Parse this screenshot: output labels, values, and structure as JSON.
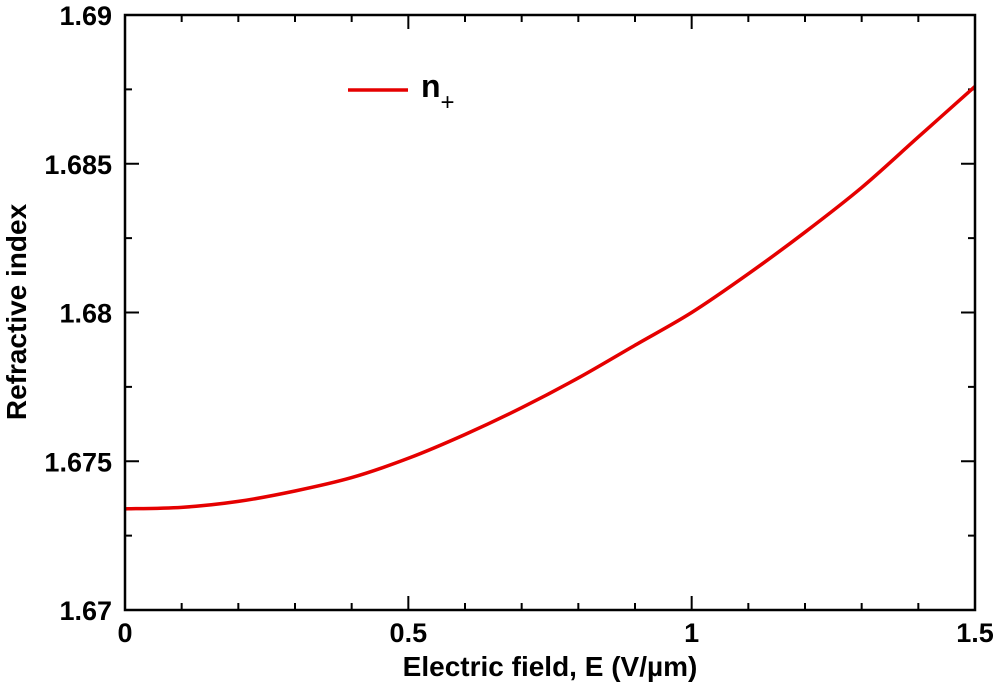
{
  "chart_data": {
    "type": "line",
    "xlabel": "Electric field, E (V/µm)",
    "ylabel": "Refractive index",
    "xlim": [
      0,
      1.5
    ],
    "ylim": [
      1.67,
      1.69
    ],
    "x_ticks": [
      0,
      0.5,
      1,
      1.5
    ],
    "x_tick_labels": [
      "0",
      "0.5",
      "1",
      "1.5"
    ],
    "y_ticks": [
      1.67,
      1.675,
      1.68,
      1.685,
      1.69
    ],
    "y_tick_labels": [
      "1.67",
      "1.675",
      "1.68",
      "1.685",
      "1.69"
    ],
    "grid": false,
    "legend_position": "top-left",
    "series": [
      {
        "name": "n",
        "name_subscript": "+",
        "color": "#e50000",
        "x": [
          0,
          0.1,
          0.2,
          0.3,
          0.4,
          0.5,
          0.6,
          0.7,
          0.8,
          0.9,
          1.0,
          1.1,
          1.2,
          1.3,
          1.4,
          1.5
        ],
        "y": [
          1.6734,
          1.67345,
          1.67365,
          1.674,
          1.67445,
          1.6751,
          1.6759,
          1.6768,
          1.6778,
          1.6789,
          1.68,
          1.6813,
          1.6827,
          1.6842,
          1.6859,
          1.6876
        ]
      }
    ]
  }
}
